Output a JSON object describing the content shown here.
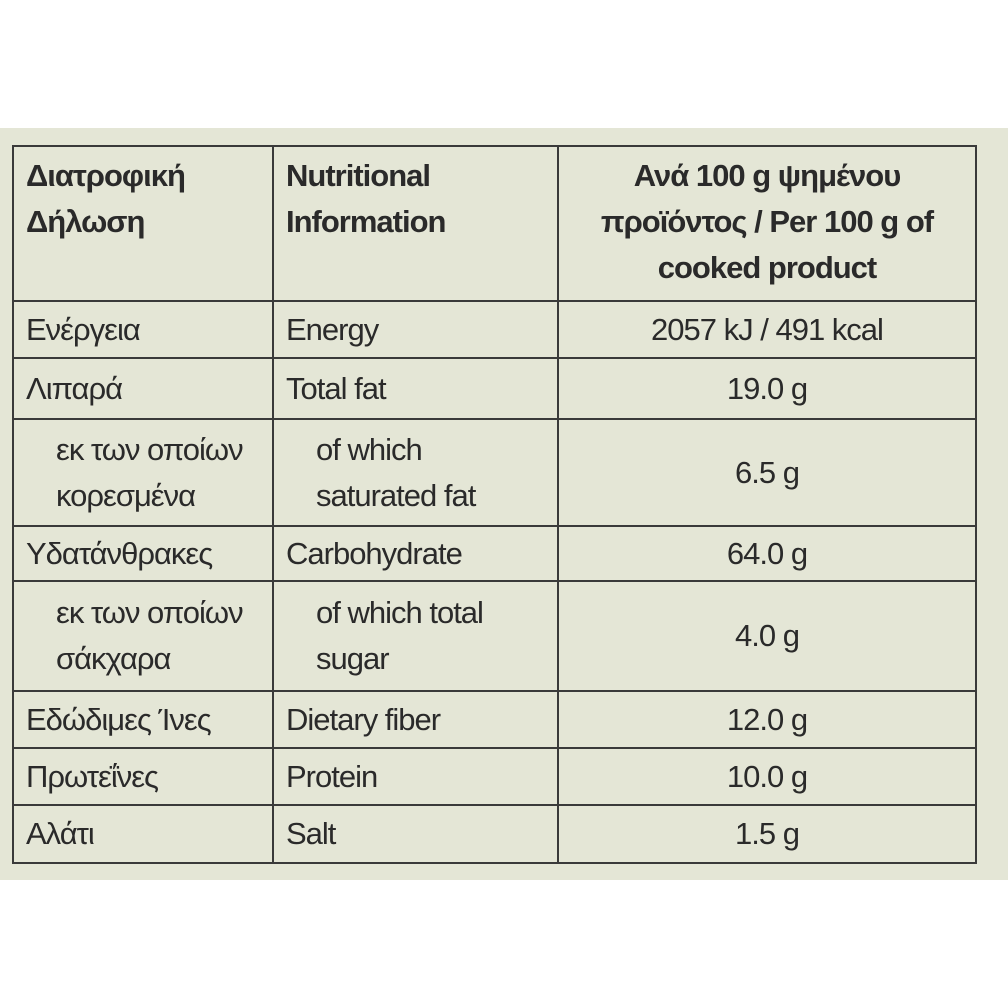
{
  "table": {
    "header": [
      "Διατροφική Δήλωση",
      "Nutritional Information",
      "Ανά 100 g ψημένου προϊόντος / Per 100 g of cooked product"
    ],
    "rows": [
      [
        "Ενέργεια",
        "Energy",
        "2057 kJ / 491 kcal"
      ],
      [
        "Λιπαρά",
        "Total fat",
        "19.0 g"
      ],
      [
        "εκ των οποίων κορεσμένα",
        "of which saturated fat",
        "6.5 g"
      ],
      [
        "Υδατάνθρακες",
        "Carbohydrate",
        "64.0 g"
      ],
      [
        "εκ των οποίων σάκχαρα",
        "of which total sugar",
        "4.0 g"
      ],
      [
        "Εδώδιμες Ίνες",
        "Dietary fiber",
        "12.0 g"
      ],
      [
        "Πρωτεΐνες",
        "Protein",
        "10.0 g"
      ],
      [
        "Αλάτι",
        "Salt",
        "1.5 g"
      ]
    ]
  }
}
